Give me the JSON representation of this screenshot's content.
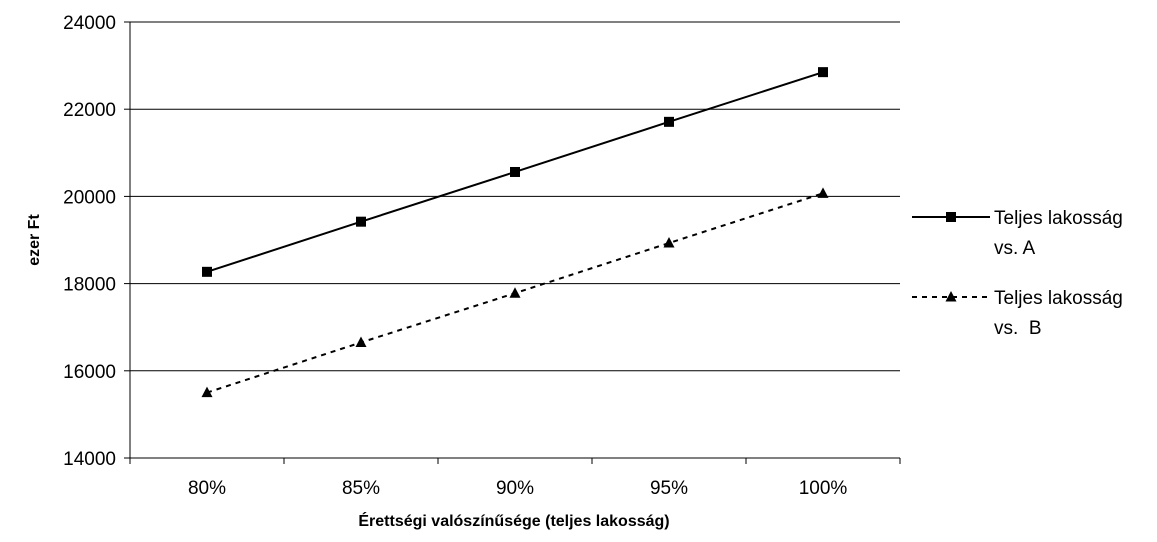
{
  "chart_data": {
    "type": "line",
    "title": "",
    "xlabel": "Érettségi valószínűsége (teljes lakosság)",
    "ylabel": "ezer Ft",
    "categories": [
      "80%",
      "85%",
      "90%",
      "95%",
      "100%"
    ],
    "ylim": [
      14000,
      24000
    ],
    "yticks": [
      14000,
      16000,
      18000,
      20000,
      22000,
      24000
    ],
    "grid": "horizontal",
    "legend_position": "right",
    "series": [
      {
        "name_lines": [
          "Teljes lakosság",
          "vs. A"
        ],
        "values": [
          18270,
          19420,
          20560,
          21710,
          22850
        ],
        "line_style": "solid",
        "marker": "square",
        "color": "#000000"
      },
      {
        "name_lines": [
          "Teljes lakosság",
          "vs.  B"
        ],
        "values": [
          15500,
          16650,
          17780,
          18930,
          20070
        ],
        "line_style": "dashed",
        "marker": "triangle",
        "color": "#000000"
      }
    ]
  }
}
